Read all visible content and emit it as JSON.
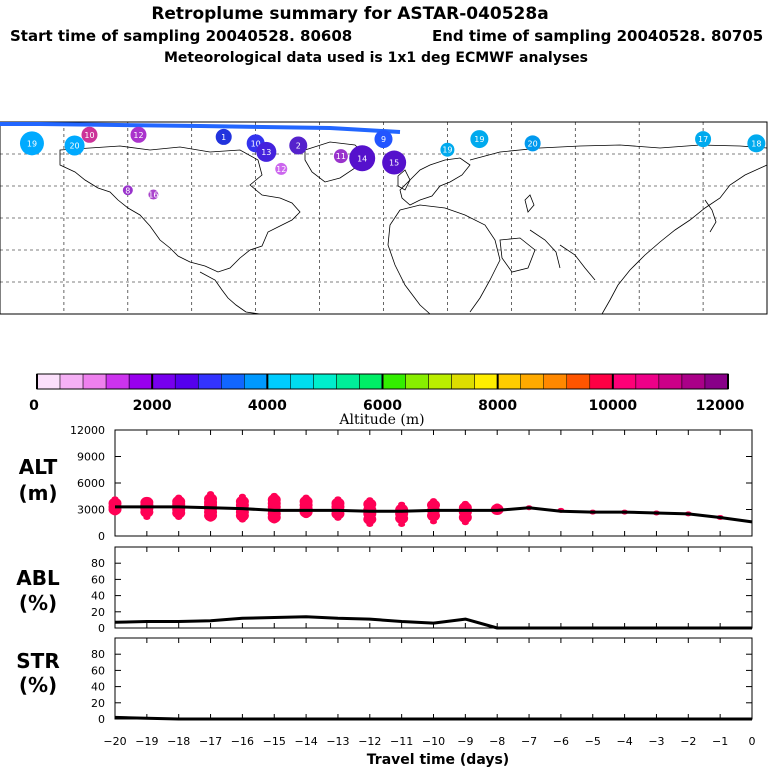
{
  "header": {
    "title": "Retroplume summary for ASTAR-040528a",
    "start_label": "Start time of sampling 20040528. 80608",
    "end_label": "End time of sampling 20040528. 80705",
    "met_label": "Meteorological data used is 1x1 deg ECMWF analyses"
  },
  "colorbar": {
    "colors": [
      "#fbe0fb",
      "#f5b0f5",
      "#ee80ee",
      "#cc33ee",
      "#9900ee",
      "#7700ee",
      "#5500ee",
      "#3333ff",
      "#1166ff",
      "#0099ff",
      "#00ccff",
      "#00ddee",
      "#00eecc",
      "#00ee99",
      "#00ee66",
      "#33ee00",
      "#88ee00",
      "#bbee00",
      "#dddd00",
      "#ffee00",
      "#ffcc00",
      "#ffaa00",
      "#ff8800",
      "#ff5500",
      "#ff0044",
      "#ff0077",
      "#ee0088",
      "#cc0088",
      "#aa0088",
      "#880088"
    ],
    "min": 0,
    "max": 12000,
    "ticks": [
      "0",
      "2000",
      "4000",
      "6000",
      "8000",
      "10000",
      "12000"
    ],
    "label": "Altitude (m)"
  },
  "map": {
    "blobs": [
      {
        "lon": -165,
        "lat": 80,
        "label": "19",
        "color": "#00aaff",
        "size": 12
      },
      {
        "lon": -145,
        "lat": 79,
        "label": "20",
        "color": "#00aaff",
        "size": 10
      },
      {
        "lon": -138,
        "lat": 84,
        "label": "10",
        "color": "#cc3399",
        "size": 8
      },
      {
        "lon": -115,
        "lat": 84,
        "label": "12",
        "color": "#aa33cc",
        "size": 8
      },
      {
        "lon": -75,
        "lat": 83,
        "label": "1",
        "color": "#2233dd",
        "size": 8
      },
      {
        "lon": -60,
        "lat": 80,
        "label": "10",
        "color": "#3333ee",
        "size": 9
      },
      {
        "lon": -55,
        "lat": 76,
        "label": "13",
        "color": "#4422dd",
        "size": 10
      },
      {
        "lon": -40,
        "lat": 79,
        "label": "2",
        "color": "#5522cc",
        "size": 9
      },
      {
        "lon": -20,
        "lat": 74,
        "label": "11",
        "color": "#9933cc",
        "size": 7
      },
      {
        "lon": -10,
        "lat": 73,
        "label": "14",
        "color": "#5511cc",
        "size": 13
      },
      {
        "lon": 5,
        "lat": 71,
        "label": "15",
        "color": "#5511cc",
        "size": 12
      },
      {
        "lon": 0,
        "lat": 82,
        "label": "9",
        "color": "#2255ff",
        "size": 9
      },
      {
        "lon": 45,
        "lat": 82,
        "label": "19",
        "color": "#00aaee",
        "size": 9
      },
      {
        "lon": 30,
        "lat": 77,
        "label": "19",
        "color": "#00aaee",
        "size": 7
      },
      {
        "lon": 70,
        "lat": 80,
        "label": "20",
        "color": "#0099ee",
        "size": 8
      },
      {
        "lon": 150,
        "lat": 82,
        "label": "17",
        "color": "#00aaee",
        "size": 8
      },
      {
        "lon": 175,
        "lat": 80,
        "label": "18",
        "color": "#00aaee",
        "size": 9
      },
      {
        "lon": -120,
        "lat": 58,
        "label": "8",
        "color": "#9933cc",
        "size": 5
      },
      {
        "lon": -108,
        "lat": 56,
        "label": "16",
        "color": "#aa44cc",
        "size": 5
      },
      {
        "lon": -48,
        "lat": 68,
        "label": "12",
        "color": "#cc66ee",
        "size": 6
      }
    ]
  },
  "panels": {
    "alt": {
      "label": "ALT",
      "unit": "(m)",
      "ticks": [
        "0",
        "3000",
        "6000",
        "9000",
        "12000"
      ]
    },
    "abl": {
      "label": "ABL",
      "unit": "(%)",
      "ticks": [
        "0",
        "20",
        "40",
        "60",
        "80"
      ]
    },
    "str": {
      "label": "STR",
      "unit": "(%)",
      "ticks": [
        "0",
        "20",
        "40",
        "60",
        "80"
      ]
    }
  },
  "chart_data": [
    {
      "type": "line",
      "title": "ALT",
      "xlabel": "Travel time (days)",
      "ylabel": "(m)",
      "xlim": [
        -20,
        0
      ],
      "ylim": [
        0,
        12000
      ],
      "x_ticks": [
        "−20",
        "−19",
        "−18",
        "−17",
        "−16",
        "−15",
        "−14",
        "−13",
        "−12",
        "−11",
        "−10",
        "−9",
        "−8",
        "−7",
        "−6",
        "−5",
        "−4",
        "−3",
        "−2",
        "−1",
        "0"
      ],
      "series": [
        {
          "name": "mean altitude",
          "x": [
            -20,
            -19,
            -18,
            -17,
            -16,
            -15,
            -14,
            -13,
            -12,
            -11,
            -10,
            -9,
            -8,
            -7,
            -6,
            -5,
            -4,
            -3,
            -2,
            -1,
            0
          ],
          "values": [
            3300,
            3300,
            3300,
            3200,
            3100,
            2900,
            2900,
            2900,
            2800,
            2800,
            2900,
            2900,
            2900,
            3200,
            2800,
            2700,
            2700,
            2600,
            2500,
            2100,
            1600
          ]
        }
      ],
      "scatter": {
        "color": "#ff0055",
        "clusters": [
          {
            "x": -20,
            "values": [
              4200,
              3700,
              3300,
              3000,
              2600
            ]
          },
          {
            "x": -19,
            "values": [
              4000,
              3800,
              3500,
              3100,
              2700,
              2100
            ]
          },
          {
            "x": -18,
            "values": [
              4400,
              3900,
              3600,
              3300,
              3000,
              2600,
              2100
            ]
          },
          {
            "x": -17,
            "values": [
              4800,
              4200,
              3800,
              3500,
              3100,
              2700,
              2300,
              1900
            ]
          },
          {
            "x": -16,
            "values": [
              4500,
              3900,
              3500,
              3100,
              2700,
              2300,
              1800
            ]
          },
          {
            "x": -15,
            "values": [
              4600,
              4100,
              3700,
              3300,
              2900,
              2500,
              2100,
              1700
            ]
          },
          {
            "x": -14,
            "values": [
              4400,
              3900,
              3500,
              3100,
              2700,
              2300
            ]
          },
          {
            "x": -13,
            "values": [
              4200,
              3700,
              3300,
              2900,
              2500,
              2000
            ]
          },
          {
            "x": -12,
            "values": [
              4100,
              3600,
              3000,
              2500,
              1900,
              1300
            ]
          },
          {
            "x": -11,
            "values": [
              3600,
              3000,
              2500,
              2000,
              1300
            ]
          },
          {
            "x": -10,
            "values": [
              4000,
              3500,
              2900,
              2300,
              1600
            ]
          },
          {
            "x": -9,
            "values": [
              3700,
              3200,
              2700,
              2100,
              1500
            ]
          },
          {
            "x": -8,
            "values": [
              3400,
              3000,
              2700
            ]
          },
          {
            "x": -7,
            "values": [
              3200
            ]
          },
          {
            "x": -6,
            "values": [
              2900
            ]
          },
          {
            "x": -5,
            "values": [
              2700
            ]
          },
          {
            "x": -4,
            "values": [
              2700
            ]
          },
          {
            "x": -3,
            "values": [
              2600
            ]
          },
          {
            "x": -2,
            "values": [
              2500
            ]
          },
          {
            "x": -1,
            "values": [
              2100
            ]
          }
        ]
      }
    },
    {
      "type": "line",
      "title": "ABL",
      "ylabel": "(%)",
      "xlim": [
        -20,
        0
      ],
      "ylim": [
        0,
        100
      ],
      "series": [
        {
          "name": "ABL fraction",
          "x": [
            -20,
            -19,
            -18,
            -17,
            -16,
            -15,
            -14,
            -13,
            -12,
            -11,
            -10,
            -9,
            -8,
            -7,
            -6,
            -5,
            -4,
            -3,
            -2,
            -1,
            0
          ],
          "values": [
            7,
            8,
            8,
            9,
            12,
            13,
            14,
            12,
            11,
            8,
            6,
            11,
            0,
            0,
            0,
            0,
            0,
            0,
            0,
            0,
            0
          ]
        }
      ]
    },
    {
      "type": "line",
      "title": "STR",
      "ylabel": "(%)",
      "xlim": [
        -20,
        0
      ],
      "ylim": [
        0,
        100
      ],
      "series": [
        {
          "name": "STR fraction",
          "x": [
            -20,
            -19,
            -18,
            -17,
            -16,
            -15,
            -14,
            -13,
            -12,
            -11,
            -10,
            -9,
            -8,
            -7,
            -6,
            -5,
            -4,
            -3,
            -2,
            -1,
            0
          ],
          "values": [
            2,
            1,
            0,
            0,
            0,
            0,
            0,
            0,
            0,
            0,
            0,
            0,
            0,
            0,
            0,
            0,
            0,
            0,
            0,
            0,
            0
          ]
        }
      ]
    }
  ]
}
